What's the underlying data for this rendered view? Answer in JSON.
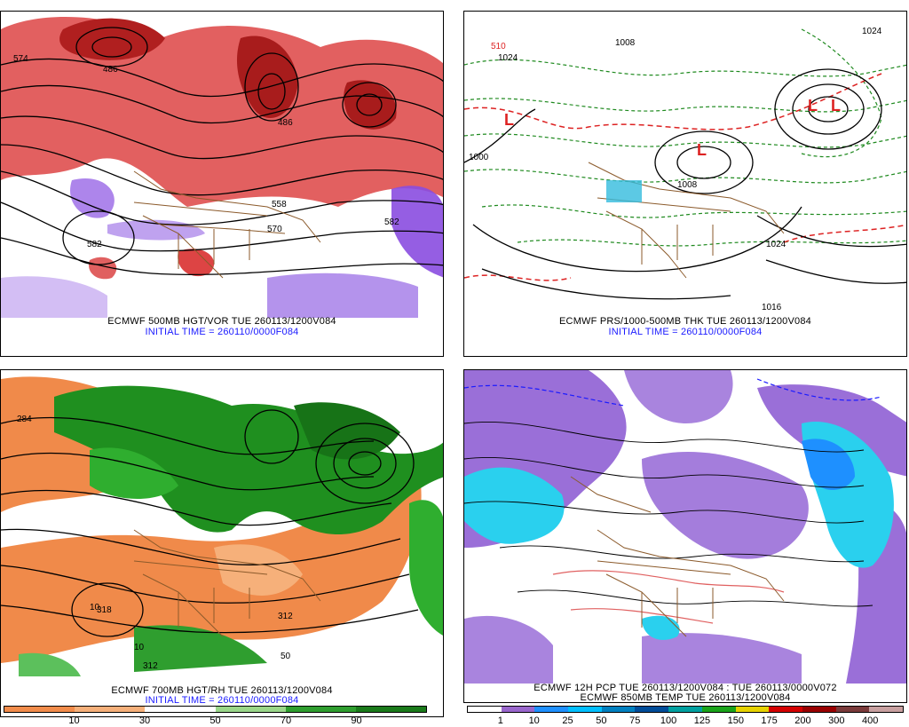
{
  "panels": {
    "top_left": {
      "title": "ECMWF 500MB HGT/VOR TUE 260113/1200V084",
      "subtitle": "INITIAL TIME = 260110/0000F084",
      "contour_labels": [
        "574",
        "486",
        "486",
        "582",
        "582",
        "558",
        "570"
      ]
    },
    "top_right": {
      "title": "ECMWF PRS/1000-500MB THK TUE 260113/1200V084",
      "subtitle": "INITIAL TIME = 260110/0000F084",
      "contour_labels": [
        "1000",
        "1024",
        "1008",
        "1008",
        "1024",
        "1016",
        "1024",
        "510"
      ],
      "low_markers": [
        "L",
        "L",
        "L",
        "L"
      ]
    },
    "bottom_left": {
      "title": "ECMWF 700MB HGT/RH TUE 260113/1200V084",
      "subtitle": "INITIAL TIME = 260110/0000F084",
      "contour_labels": [
        "284",
        "318",
        "312",
        "312",
        "10",
        "50",
        "10"
      ],
      "colorbar_ticks": [
        "10",
        "30",
        "50",
        "70",
        "90"
      ],
      "colorbar_colors": [
        "#f28c4b",
        "#f6b07a",
        "#ffffff",
        "#9ad68a",
        "#2f9e2f",
        "#1a7a1a"
      ]
    },
    "bottom_right": {
      "title": "ECMWF 12H PCP TUE 260113/1200V084 : TUE 260113/0000V072",
      "subtitle": "ECMWF 850MB TEMP TUE 260113/1200V084",
      "colorbar_ticks": [
        "1",
        "10",
        "25",
        "50",
        "75",
        "100",
        "125",
        "150",
        "175",
        "200",
        "300",
        "400"
      ],
      "colorbar_colors": [
        "#ffffff",
        "#9966cc",
        "#1e90ff",
        "#00bfff",
        "#0080c0",
        "#004c99",
        "#00a0a0",
        "#1aa31a",
        "#e6d200",
        "#d40000",
        "#990000",
        "#7a3a3a",
        "#c8a0a0"
      ]
    }
  },
  "colors": {
    "vorticity_positive": "#cc2222",
    "vorticity_negative": "#8a4de0",
    "thickness_cold": "#1f8a1f",
    "thickness_warm": "#dd2222",
    "rh_dry": "#f08a4a",
    "rh_moist": "#1f8f1f",
    "precip_light": "#9a6fd8",
    "precip_mod": "#2ad0ee",
    "border_brown": "#8b5a2b"
  }
}
